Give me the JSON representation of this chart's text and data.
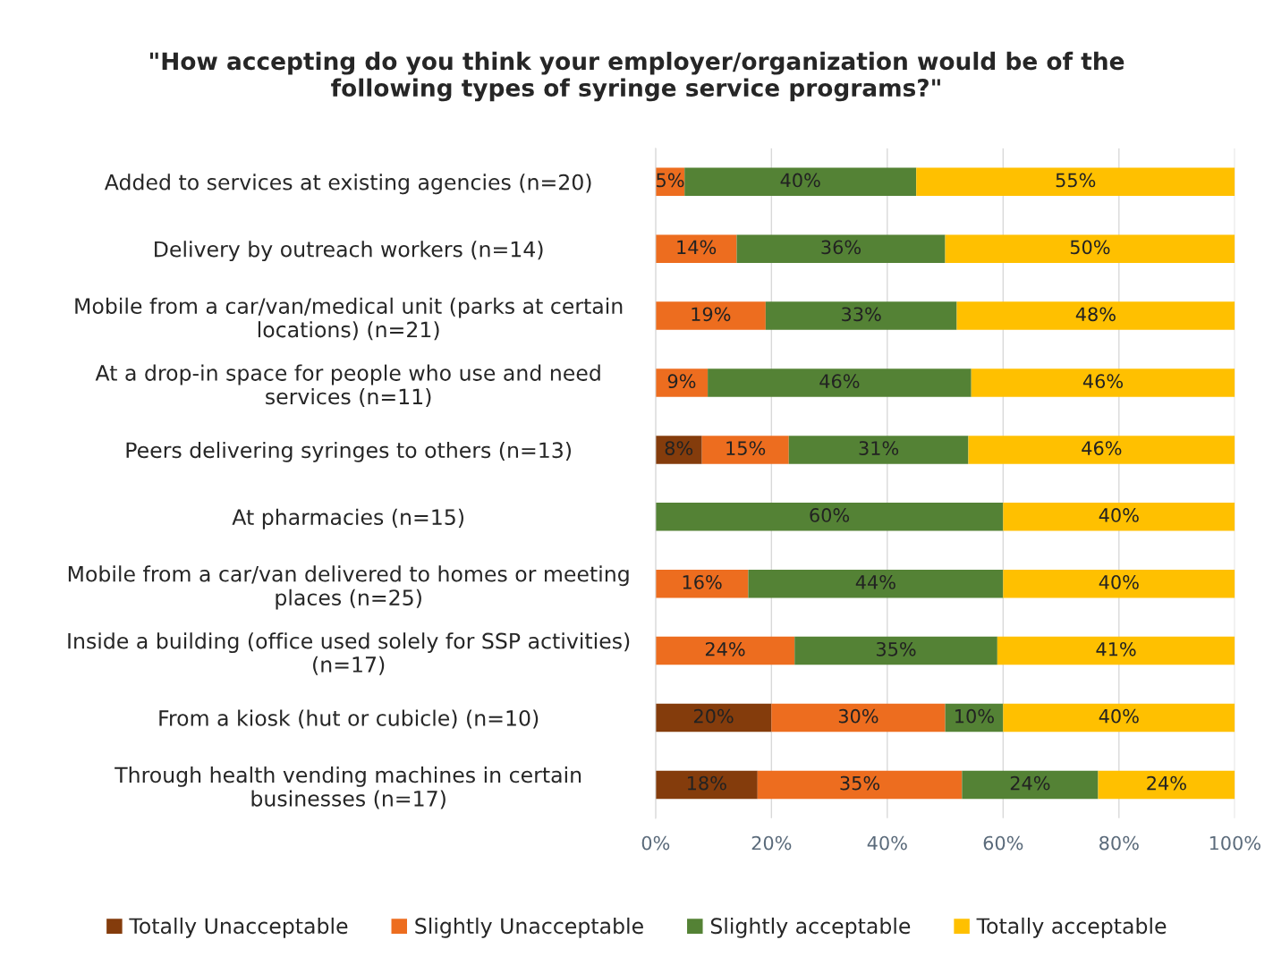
{
  "chart_data": {
    "type": "bar",
    "orientation": "horizontal",
    "stacked": true,
    "title": "\"How accepting do you think your employer/organization would be of the\nfollowing types of syringe service programs?\"",
    "categories": [
      "Added to services at existing agencies (n=20)",
      "Delivery by outreach workers (n=14)",
      "Mobile from a car/van/medical unit (parks at certain\nlocations) (n=21)",
      "At a drop-in space for people who use and need\nservices (n=11)",
      "Peers delivering syringes to others (n=13)",
      "At pharmacies (n=15)",
      "Mobile from a car/van delivered to homes or meeting\nplaces (n=25)",
      "Inside a building (office used solely for SSP activities)\n(n=17)",
      "From a kiosk (hut or cubicle) (n=10)",
      "Through health vending machines in certain\nbusinesses (n=17)"
    ],
    "series": [
      {
        "name": "Totally Unacceptable",
        "color": "#843c0c",
        "values": [
          0,
          0,
          0,
          0,
          8,
          0,
          0,
          0,
          20,
          17.6
        ],
        "value_labels": [
          null,
          null,
          null,
          null,
          "8%",
          null,
          null,
          null,
          "20%",
          "18%"
        ]
      },
      {
        "name": "Slightly Unacceptable",
        "color": "#ed6d1f",
        "values": [
          5,
          14,
          19,
          9,
          15,
          0,
          16,
          24,
          30,
          35.3
        ],
        "value_labels": [
          "5%",
          "14%",
          "19%",
          "9%",
          "15%",
          null,
          "16%",
          "24%",
          "30%",
          "35%"
        ]
      },
      {
        "name": "Slightly acceptable",
        "color": "#548235",
        "values": [
          40,
          36,
          33,
          45.5,
          31,
          60,
          44,
          35,
          10,
          23.5
        ],
        "value_labels": [
          "40%",
          "36%",
          "33%",
          "46%",
          "31%",
          "60%",
          "44%",
          "35%",
          "10%",
          "24%"
        ]
      },
      {
        "name": "Totally acceptable",
        "color": "#ffc000",
        "values": [
          55,
          50,
          48,
          45.5,
          46,
          40,
          40,
          41,
          40,
          23.6
        ],
        "value_labels": [
          "55%",
          "50%",
          "48%",
          "46%",
          "46%",
          "40%",
          "40%",
          "41%",
          "40%",
          "24%"
        ]
      }
    ],
    "xlim": [
      0,
      100
    ],
    "xticks": [
      {
        "value": 0,
        "label": "0%"
      },
      {
        "value": 20,
        "label": "20%"
      },
      {
        "value": 40,
        "label": "40%"
      },
      {
        "value": 60,
        "label": "60%"
      },
      {
        "value": 80,
        "label": "80%"
      },
      {
        "value": 100,
        "label": "100%"
      }
    ],
    "grid": "x",
    "legend": "bottom"
  }
}
